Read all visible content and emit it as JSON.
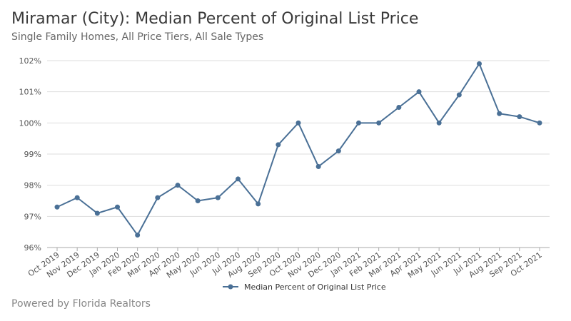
{
  "header": {
    "title": "Miramar (City): Median Percent of Original List Price",
    "subtitle": "Single Family Homes, All Price Tiers, All Sale Types"
  },
  "footer": {
    "credit": "Powered by Florida Realtors"
  },
  "colors": {
    "series": "#4a7096",
    "grid": "#dddddd",
    "axis": "#aaaaaa"
  },
  "chart_data": {
    "type": "line",
    "title": "Miramar (City): Median Percent of Original List Price",
    "subtitle": "Single Family Homes, All Price Tiers, All Sale Types",
    "xlabel": "",
    "ylabel": "",
    "ylim": [
      96,
      102
    ],
    "yticks": [
      {
        "value": 96,
        "label": "96%"
      },
      {
        "value": 97,
        "label": "97%"
      },
      {
        "value": 98,
        "label": "98%"
      },
      {
        "value": 99,
        "label": "99%"
      },
      {
        "value": 100,
        "label": "100%"
      },
      {
        "value": 101,
        "label": "101%"
      },
      {
        "value": 102,
        "label": "102%"
      }
    ],
    "grid": true,
    "legend_position": "bottom",
    "categories": [
      "Oct 2019",
      "Nov 2019",
      "Dec 2019",
      "Jan 2020",
      "Feb 2020",
      "Mar 2020",
      "Apr 2020",
      "May 2020",
      "Jun 2020",
      "Jul 2020",
      "Aug 2020",
      "Sep 2020",
      "Oct 2020",
      "Nov 2020",
      "Dec 2020",
      "Jan 2021",
      "Feb 2021",
      "Mar 2021",
      "Apr 2021",
      "May 2021",
      "Jun 2021",
      "Jul 2021",
      "Aug 2021",
      "Sep 2021",
      "Oct 2021"
    ],
    "series": [
      {
        "name": "Median Percent of Original List Price",
        "values": [
          97.3,
          97.6,
          97.1,
          97.3,
          96.4,
          97.6,
          98.0,
          97.5,
          97.6,
          98.2,
          97.4,
          99.3,
          100.0,
          98.6,
          99.1,
          100.0,
          100.0,
          100.5,
          101.0,
          100.0,
          100.9,
          101.9,
          100.3,
          100.2,
          100.0
        ]
      }
    ]
  }
}
